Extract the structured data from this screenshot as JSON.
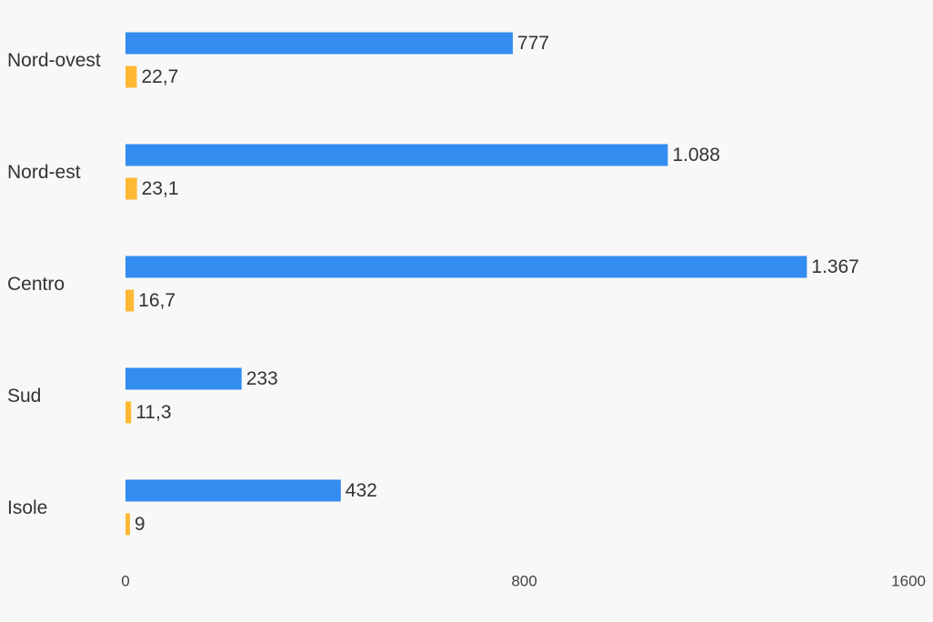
{
  "chart_data": {
    "type": "bar",
    "orientation": "horizontal",
    "categories": [
      "Nord-ovest",
      "Nord-est",
      "Centro",
      "Sud",
      "Isole"
    ],
    "series": [
      {
        "color": "#338cf0",
        "values": [
          777,
          1088,
          1367,
          233,
          432
        ],
        "value_labels": [
          "777",
          "1.088",
          "1.367",
          "233",
          "432"
        ]
      },
      {
        "color": "#ffb833",
        "values": [
          22.7,
          23.1,
          16.7,
          11.3,
          9
        ],
        "value_labels": [
          "22,7",
          "23,1",
          "16,7",
          "11,3",
          "9"
        ]
      }
    ],
    "xlim": [
      0,
      1600
    ],
    "xticks": [
      0,
      800,
      1600
    ],
    "grid": false
  }
}
